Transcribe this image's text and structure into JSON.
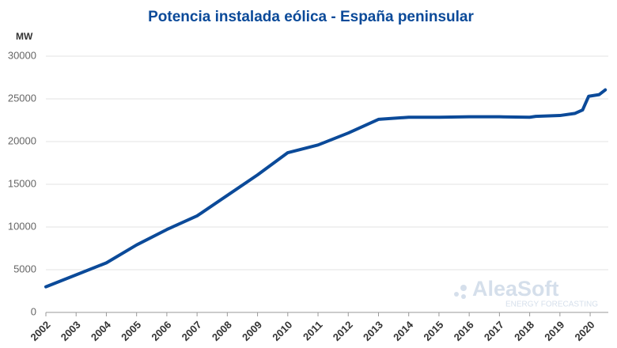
{
  "chart_data": {
    "type": "line",
    "title": "Potencia instalada eólica - España peninsular",
    "y_label": "MW",
    "watermark": {
      "brand": "AleaSoft",
      "tagline": "ENERGY FORECASTING"
    },
    "x": [
      2002,
      2003,
      2004,
      2005,
      2006,
      2007,
      2008,
      2009,
      2010,
      2011,
      2012,
      2013,
      2014,
      2015,
      2016,
      2017,
      2018,
      2018.2,
      2019,
      2019.5,
      2019.75,
      2019.95,
      2020.3,
      2020.5
    ],
    "series": [
      {
        "name": "Potencia instalada",
        "color": "#0b4a99",
        "values": [
          3000,
          4400,
          5800,
          7900,
          9700,
          11300,
          13700,
          16100,
          18700,
          19600,
          21000,
          22600,
          22850,
          22850,
          22900,
          22900,
          22850,
          22950,
          23050,
          23300,
          23700,
          25300,
          25500,
          26050
        ]
      }
    ],
    "xlim": [
      2002,
      2020.6
    ],
    "xticks": [
      2002,
      2003,
      2004,
      2005,
      2006,
      2007,
      2008,
      2009,
      2010,
      2011,
      2012,
      2013,
      2014,
      2015,
      2016,
      2017,
      2018,
      2019,
      2020
    ],
    "ylim": [
      0,
      30000
    ],
    "yticks": [
      0,
      5000,
      10000,
      15000,
      20000,
      25000,
      30000
    ],
    "grid": true
  }
}
